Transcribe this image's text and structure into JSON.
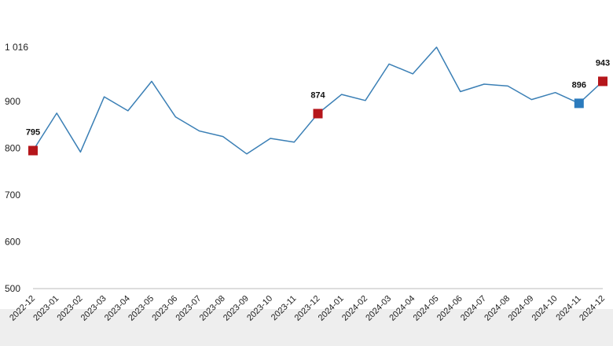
{
  "chart_data": {
    "type": "line",
    "title": "",
    "xlabel": "",
    "ylabel": "",
    "ylim": [
      500,
      1016
    ],
    "y_ticks": [
      {
        "value": 500,
        "label": "500"
      },
      {
        "value": 600,
        "label": "600"
      },
      {
        "value": 700,
        "label": "700"
      },
      {
        "value": 800,
        "label": "800"
      },
      {
        "value": 900,
        "label": "900"
      },
      {
        "value": 1016,
        "label": "1 016"
      }
    ],
    "grid": false,
    "categories": [
      "2022-12",
      "2023-01",
      "2023-02",
      "2023-03",
      "2023-04",
      "2023-05",
      "2023-06",
      "2023-07",
      "2023-08",
      "2023-09",
      "2023-10",
      "2023-11",
      "2023-12",
      "2024-01",
      "2024-02",
      "2024-03",
      "2024-04",
      "2024-05",
      "2024-06",
      "2024-07",
      "2024-08",
      "2024-09",
      "2024-10",
      "2024-11",
      "2024-12"
    ],
    "series": [
      {
        "values": [
          795,
          875,
          792,
          910,
          880,
          943,
          867,
          837,
          825,
          788,
          821,
          813,
          874,
          915,
          902,
          980,
          959,
          1016,
          921,
          937,
          933,
          904,
          919,
          896,
          943
        ]
      }
    ],
    "highlighted_points": [
      {
        "category": "2022-12",
        "value": 795,
        "label": "795",
        "color": "#b5161b"
      },
      {
        "category": "2023-12",
        "value": 874,
        "label": "874",
        "color": "#b5161b"
      },
      {
        "category": "2024-11",
        "value": 896,
        "label": "896",
        "color": "#2b7bbd"
      },
      {
        "category": "2024-12",
        "value": 943,
        "label": "943",
        "color": "#b5161b"
      }
    ],
    "colors": {
      "line": "#3a7fb5",
      "axis": "#bbbbbb",
      "footer": "#eeeeee"
    }
  }
}
